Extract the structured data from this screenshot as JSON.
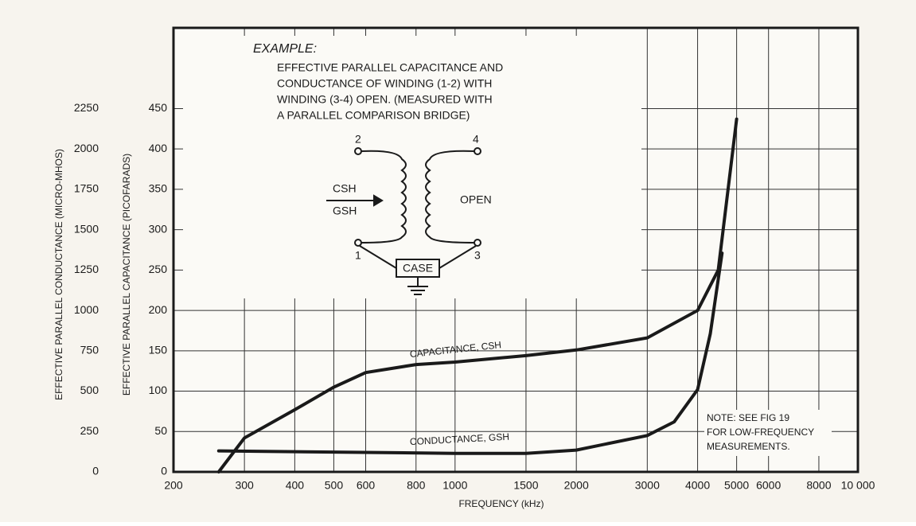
{
  "chart_data": {
    "type": "line",
    "title": "EXAMPLE:",
    "subtitle": [
      "EFFECTIVE PARALLEL CAPACITANCE AND",
      "CONDUCTANCE OF WINDING (1-2) WITH",
      "WINDING (3-4) OPEN. (MEASURED WITH",
      "A PARALLEL COMPARISON BRIDGE)"
    ],
    "x_label": "FREQUENCY (kHz)",
    "y_label": "EFFECTIVE PARALLEL CAPACITANCE (PICOFARADS)",
    "y2_label": "EFFECTIVE PARALLEL CONDUCTANCE (MICRO-MHOS)",
    "log_x": true,
    "grid": true,
    "xlim": [
      200,
      10000
    ],
    "xticks": [
      200,
      300,
      400,
      500,
      600,
      800,
      1000,
      1500,
      2000,
      3000,
      4000,
      5000,
      6000,
      8000,
      {
        "value": 10000,
        "label": "10 000"
      }
    ],
    "ylim": [
      0,
      550
    ],
    "yticks": [
      0,
      50,
      100,
      150,
      200,
      250,
      300,
      350,
      400,
      450
    ],
    "y2lim": [
      0,
      2750
    ],
    "y2ticks": [
      0,
      250,
      500,
      750,
      1000,
      1250,
      1500,
      1750,
      2000,
      2250
    ],
    "series": [
      {
        "name": "CAPACITANCE, CSH",
        "color": "#1a1a1a",
        "axis": "y",
        "x": [
          259,
          300,
          400,
          500,
          600,
          800,
          1000,
          1500,
          2000,
          3000,
          4000,
          4500,
          5000
        ],
        "values": [
          0,
          42,
          77,
          105,
          123,
          133,
          136,
          144,
          151,
          166,
          200,
          250,
          437
        ]
      },
      {
        "name": "CONDUCTANCE, GSH",
        "color": "#1a1a1a",
        "axis": "y2",
        "x": [
          259,
          1000,
          1500,
          2000,
          3000,
          3500,
          4000,
          4300,
          4600
        ],
        "values": [
          130,
          115,
          115,
          135,
          225,
          310,
          510,
          855,
          1355
        ]
      }
    ],
    "note": [
      "NOTE: SEE FIG 19",
      "FOR LOW-FREQUENCY",
      "MEASUREMENTS."
    ],
    "diagram": {
      "terminals": [
        "2",
        "4",
        "1",
        "3"
      ],
      "input": [
        "CSH",
        "GSH"
      ],
      "open": "OPEN",
      "case": "CASE"
    }
  }
}
